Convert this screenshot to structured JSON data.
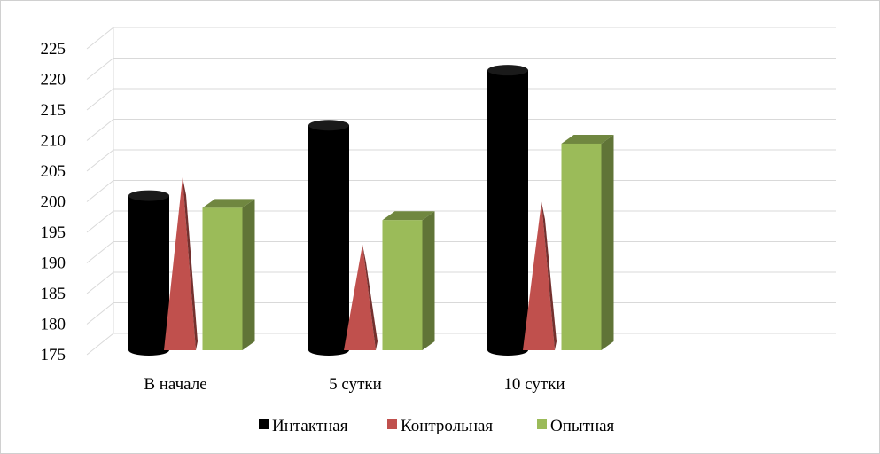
{
  "chart_data": {
    "type": "bar",
    "style": "3d-column",
    "categories": [
      "В начале",
      "5 сутки",
      "10 сутки"
    ],
    "series": [
      {
        "name": "Интактная",
        "values": [
          201,
          212.5,
          221.5
        ],
        "color": "#000000",
        "shape": "cylinder"
      },
      {
        "name": "Контрольная",
        "values": [
          204,
          193,
          200
        ],
        "color": "#C0504D",
        "shape": "cone"
      },
      {
        "name": "Опытная",
        "values": [
          199,
          197,
          209.5
        ],
        "color": "#9BBB59",
        "shape": "box"
      }
    ],
    "yticks": [
      "175",
      "180",
      "185",
      "190",
      "195",
      "200",
      "205",
      "210",
      "215",
      "220",
      "225"
    ],
    "ylim": [
      175,
      225
    ],
    "grid": true,
    "legend": "bottom",
    "title": "",
    "xlabel": "",
    "ylabel": ""
  }
}
